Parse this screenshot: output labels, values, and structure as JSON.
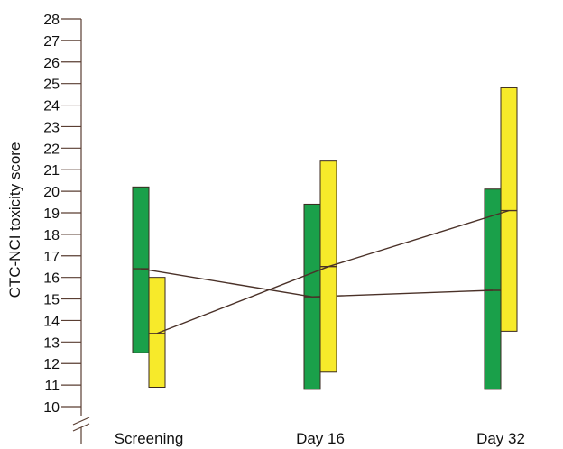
{
  "chart_data": {
    "type": "box-range",
    "title": "",
    "xlabel": "",
    "ylabel": "CTC-NCI toxicity score",
    "ylim": [
      10,
      28
    ],
    "yticks": [
      10,
      11,
      12,
      13,
      14,
      15,
      16,
      17,
      18,
      19,
      20,
      21,
      22,
      23,
      24,
      25,
      26,
      27,
      28
    ],
    "categories": [
      "Screening",
      "Day 16",
      "Day 32"
    ],
    "axis_break": true,
    "grid": false,
    "legend": "none",
    "series": [
      {
        "color": "#1aa04a",
        "low": [
          12.5,
          10.8,
          10.8
        ],
        "high": [
          20.2,
          19.4,
          20.1
        ],
        "mean": [
          16.4,
          15.1,
          15.4
        ]
      },
      {
        "color": "#f7ea2a",
        "low": [
          10.9,
          11.6,
          13.5
        ],
        "high": [
          16.0,
          21.4,
          24.8
        ],
        "mean": [
          13.4,
          16.5,
          19.1
        ]
      }
    ]
  }
}
